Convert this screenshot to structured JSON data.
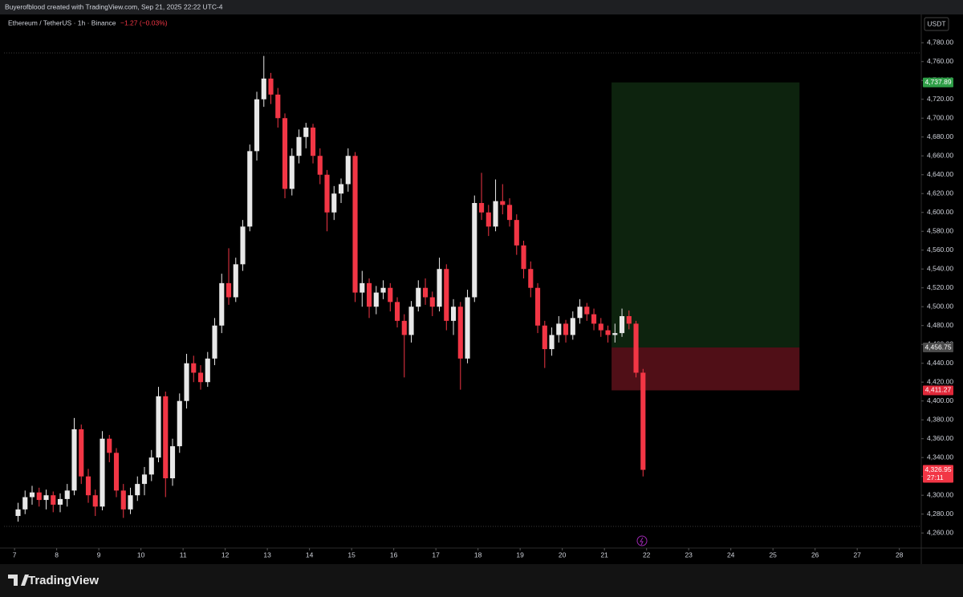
{
  "header": {
    "credit": "Buyerofblood created with TradingView.com, Sep 21, 2025 22:22 UTC-4"
  },
  "chart_data": {
    "type": "candlestick",
    "symbol": "Ethereum / TetherUS · 1h · Binance",
    "change": "−1.27 (−0.03%)",
    "currency": "USDT",
    "up_color": "#e8e8e8",
    "down_color": "#f23645",
    "x": [
      7,
      7.1667,
      7.3333,
      7.5,
      7.6667,
      7.8333,
      8,
      8.1667,
      8.3333,
      8.5,
      8.6667,
      8.8333,
      9,
      9.1667,
      9.3333,
      9.5,
      9.6667,
      9.8333,
      10,
      10.1667,
      10.3333,
      10.5,
      10.6667,
      10.8333,
      11,
      11.1667,
      11.3333,
      11.5,
      11.6667,
      11.8333,
      12,
      12.1667,
      12.3333,
      12.5,
      12.6667,
      12.8333,
      13,
      13.1667,
      13.3333,
      13.5,
      13.6667,
      13.8333,
      14,
      14.1667,
      14.3333,
      14.5,
      14.6667,
      14.8333,
      15,
      15.1667,
      15.3333,
      15.5,
      15.6667,
      15.8333,
      16,
      16.1667,
      16.3333,
      16.5,
      16.6667,
      16.8333,
      17,
      17.1667,
      17.3333,
      17.5,
      17.6667,
      17.8333,
      18,
      18.1667,
      18.3333,
      18.5,
      18.6667,
      18.8333,
      19,
      19.1667,
      19.3333,
      19.5,
      19.6667,
      19.8333,
      20,
      20.1667,
      20.3333,
      20.5,
      20.6667,
      20.8333,
      21,
      21.1667,
      21.3333,
      21.5,
      21.6667,
      21.8333
    ],
    "candles": [
      [
        4278,
        4292,
        4272,
        4285
      ],
      [
        4285,
        4305,
        4280,
        4298
      ],
      [
        4298,
        4310,
        4290,
        4303
      ],
      [
        4303,
        4308,
        4288,
        4295
      ],
      [
        4295,
        4306,
        4285,
        4300
      ],
      [
        4300,
        4304,
        4282,
        4290
      ],
      [
        4290,
        4302,
        4282,
        4296
      ],
      [
        4296,
        4312,
        4288,
        4305
      ],
      [
        4305,
        4382,
        4300,
        4370
      ],
      [
        4370,
        4375,
        4312,
        4320
      ],
      [
        4320,
        4328,
        4292,
        4300
      ],
      [
        4300,
        4306,
        4278,
        4288
      ],
      [
        4288,
        4368,
        4284,
        4360
      ],
      [
        4360,
        4364,
        4335,
        4345
      ],
      [
        4345,
        4350,
        4298,
        4305
      ],
      [
        4305,
        4312,
        4276,
        4285
      ],
      [
        4285,
        4308,
        4280,
        4300
      ],
      [
        4300,
        4320,
        4294,
        4312
      ],
      [
        4312,
        4330,
        4300,
        4322
      ],
      [
        4322,
        4348,
        4315,
        4340
      ],
      [
        4340,
        4415,
        4335,
        4405
      ],
      [
        4405,
        4410,
        4298,
        4318
      ],
      [
        4318,
        4360,
        4310,
        4352
      ],
      [
        4352,
        4408,
        4345,
        4400
      ],
      [
        4400,
        4450,
        4392,
        4440
      ],
      [
        4440,
        4448,
        4420,
        4430
      ],
      [
        4430,
        4438,
        4412,
        4420
      ],
      [
        4420,
        4452,
        4415,
        4445
      ],
      [
        4445,
        4488,
        4438,
        4480
      ],
      [
        4480,
        4535,
        4472,
        4525
      ],
      [
        4525,
        4562,
        4502,
        4510
      ],
      [
        4510,
        4552,
        4505,
        4545
      ],
      [
        4545,
        4592,
        4538,
        4585
      ],
      [
        4585,
        4672,
        4580,
        4665
      ],
      [
        4665,
        4728,
        4655,
        4720
      ],
      [
        4720,
        4766,
        4712,
        4742
      ],
      [
        4742,
        4748,
        4715,
        4725
      ],
      [
        4725,
        4732,
        4690,
        4700
      ],
      [
        4700,
        4705,
        4615,
        4625
      ],
      [
        4625,
        4668,
        4618,
        4660
      ],
      [
        4660,
        4688,
        4652,
        4680
      ],
      [
        4680,
        4695,
        4668,
        4690
      ],
      [
        4690,
        4694,
        4652,
        4660
      ],
      [
        4660,
        4668,
        4630,
        4640
      ],
      [
        4640,
        4645,
        4580,
        4600
      ],
      [
        4600,
        4628,
        4592,
        4620
      ],
      [
        4620,
        4636,
        4610,
        4630
      ],
      [
        4630,
        4668,
        4622,
        4660
      ],
      [
        4660,
        4664,
        4505,
        4515
      ],
      [
        4515,
        4538,
        4500,
        4525
      ],
      [
        4525,
        4530,
        4488,
        4500
      ],
      [
        4500,
        4522,
        4492,
        4515
      ],
      [
        4515,
        4528,
        4508,
        4520
      ],
      [
        4520,
        4525,
        4495,
        4505
      ],
      [
        4505,
        4510,
        4478,
        4485
      ],
      [
        4485,
        4492,
        4425,
        4470
      ],
      [
        4470,
        4506,
        4462,
        4500
      ],
      [
        4500,
        4528,
        4495,
        4520
      ],
      [
        4520,
        4530,
        4502,
        4510
      ],
      [
        4510,
        4516,
        4490,
        4500
      ],
      [
        4500,
        4552,
        4495,
        4540
      ],
      [
        4540,
        4545,
        4475,
        4485
      ],
      [
        4485,
        4508,
        4470,
        4500
      ],
      [
        4500,
        4505,
        4412,
        4445
      ],
      [
        4445,
        4518,
        4440,
        4510
      ],
      [
        4510,
        4618,
        4505,
        4610
      ],
      [
        4610,
        4642,
        4592,
        4600
      ],
      [
        4600,
        4608,
        4575,
        4585
      ],
      [
        4585,
        4635,
        4580,
        4612
      ],
      [
        4612,
        4630,
        4598,
        4608
      ],
      [
        4608,
        4615,
        4585,
        4592
      ],
      [
        4592,
        4598,
        4555,
        4565
      ],
      [
        4565,
        4570,
        4530,
        4540
      ],
      [
        4540,
        4548,
        4510,
        4520
      ],
      [
        4520,
        4525,
        4472,
        4480
      ],
      [
        4480,
        4485,
        4435,
        4455
      ],
      [
        4455,
        4478,
        4448,
        4470
      ],
      [
        4470,
        4490,
        4462,
        4482
      ],
      [
        4482,
        4486,
        4462,
        4470
      ],
      [
        4470,
        4495,
        4465,
        4488
      ],
      [
        4488,
        4508,
        4482,
        4500
      ],
      [
        4500,
        4504,
        4485,
        4492
      ],
      [
        4492,
        4498,
        4475,
        4482
      ],
      [
        4482,
        4488,
        4468,
        4475
      ],
      [
        4475,
        4480,
        4462,
        4470
      ],
      [
        4470,
        4482,
        4462,
        4472
      ],
      [
        4472,
        4498,
        4468,
        4490
      ],
      [
        4490,
        4496,
        4476,
        4482
      ],
      [
        4482,
        4485,
        4425,
        4430
      ],
      [
        4430,
        4434,
        4320,
        4326.95
      ]
    ],
    "xlim": [
      6.75,
      28.52
    ],
    "xticks": [
      7,
      8,
      9,
      10,
      11,
      12,
      13,
      14,
      15,
      16,
      17,
      18,
      19,
      20,
      21,
      22,
      23,
      24,
      25,
      26,
      27,
      28
    ],
    "ylim": [
      4244,
      4810
    ],
    "yticks": [
      {
        "value": 4260,
        "label": "4,260.00"
      },
      {
        "value": 4280,
        "label": "4,280.00"
      },
      {
        "value": 4300,
        "label": "4,300.00"
      },
      {
        "value": 4320,
        "label": "4,320.00"
      },
      {
        "value": 4340,
        "label": "4,340.00"
      },
      {
        "value": 4360,
        "label": "4,360.00"
      },
      {
        "value": 4380,
        "label": "4,380.00"
      },
      {
        "value": 4400,
        "label": "4,400.00"
      },
      {
        "value": 4420,
        "label": "4,420.00"
      },
      {
        "value": 4440,
        "label": "4,440.00"
      },
      {
        "value": 4460,
        "label": "4,460.00"
      },
      {
        "value": 4480,
        "label": "4,480.00"
      },
      {
        "value": 4500,
        "label": "4,500.00"
      },
      {
        "value": 4520,
        "label": "4,520.00"
      },
      {
        "value": 4540,
        "label": "4,540.00"
      },
      {
        "value": 4560,
        "label": "4,560.00"
      },
      {
        "value": 4580,
        "label": "4,580.00"
      },
      {
        "value": 4600,
        "label": "4,600.00"
      },
      {
        "value": 4620,
        "label": "4,620.00"
      },
      {
        "value": 4640,
        "label": "4,640.00"
      },
      {
        "value": 4660,
        "label": "4,660.00"
      },
      {
        "value": 4680,
        "label": "4,680.00"
      },
      {
        "value": 4700,
        "label": "4,700.00"
      },
      {
        "value": 4720,
        "label": "4,720.00"
      },
      {
        "value": 4740,
        "label": "4,740.00"
      },
      {
        "value": 4760,
        "label": "4,760.00"
      },
      {
        "value": 4780,
        "label": "4,780.00"
      }
    ],
    "position": {
      "start": 21.17,
      "end": 25.63,
      "target": {
        "value": 4737.89,
        "label": "4,737.89"
      },
      "entry": {
        "value": 4456.75,
        "label": "4,456.75"
      },
      "stop": {
        "value": 4411.27,
        "label": "4,411.27"
      }
    },
    "last_price": {
      "value": 4326.95,
      "label": "4,326.95"
    },
    "countdown": "27:11"
  },
  "footer": {
    "brand": "TradingView"
  }
}
